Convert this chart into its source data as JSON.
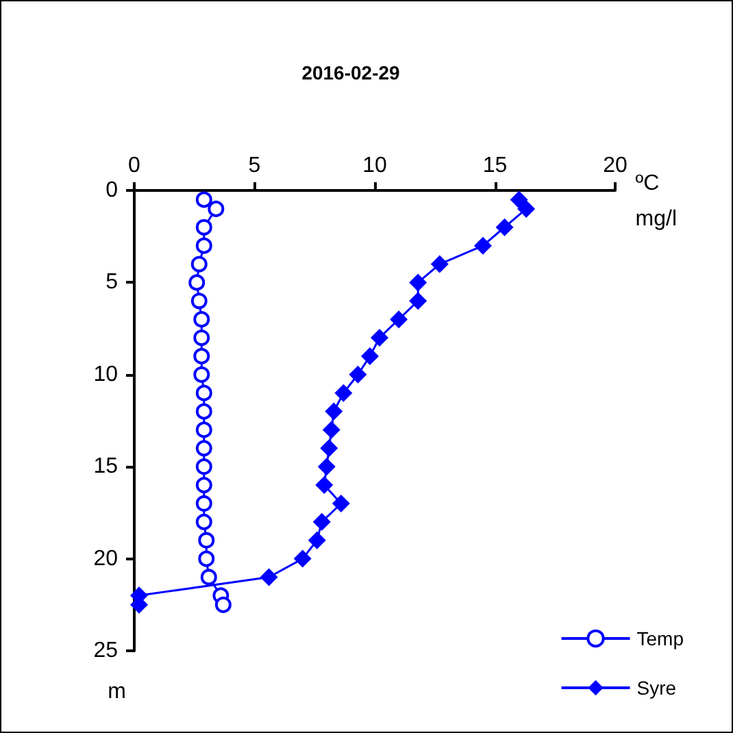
{
  "chart_data": {
    "type": "line",
    "title": "2016-02-29",
    "xlabel": "ºC\nmg/l",
    "ylabel": "m",
    "xlim": [
      0,
      20
    ],
    "xticks": [
      0,
      5,
      10,
      15,
      20
    ],
    "ylim": [
      25,
      0
    ],
    "yticks": [
      0,
      5,
      10,
      15,
      20,
      25
    ],
    "grid": false,
    "legend": "bottom right",
    "line_style": "solid",
    "series": [
      {
        "name": "Temp",
        "color": "#0000ff",
        "marker": "circle",
        "x": [
          2.9,
          3.4,
          2.9,
          2.9,
          2.7,
          2.6,
          2.7,
          2.8,
          2.8,
          2.8,
          2.8,
          2.9,
          2.9,
          2.9,
          2.9,
          2.9,
          2.9,
          2.9,
          2.9,
          3.0,
          3.0,
          3.1,
          3.6,
          3.7
        ],
        "values": [
          0.5,
          1,
          2,
          3,
          4,
          5,
          6,
          7,
          8,
          9,
          10,
          11,
          12,
          13,
          14,
          15,
          16,
          17,
          18,
          19,
          20,
          21,
          22,
          22.5
        ]
      },
      {
        "name": "Syre",
        "color": "#0000ff",
        "marker": "diamond",
        "x": [
          16.0,
          16.3,
          15.4,
          14.5,
          12.7,
          11.8,
          11.8,
          11.0,
          10.2,
          9.8,
          9.3,
          8.7,
          8.3,
          8.2,
          8.1,
          8.0,
          7.9,
          8.6,
          7.8,
          7.6,
          7.0,
          5.6,
          0.2,
          0.2
        ],
        "values": [
          0.5,
          1,
          2,
          3,
          4,
          5,
          6,
          7,
          8,
          9,
          10,
          11,
          12,
          13,
          14,
          15,
          16,
          17,
          18,
          19,
          20,
          21,
          22,
          22.5
        ]
      }
    ]
  }
}
